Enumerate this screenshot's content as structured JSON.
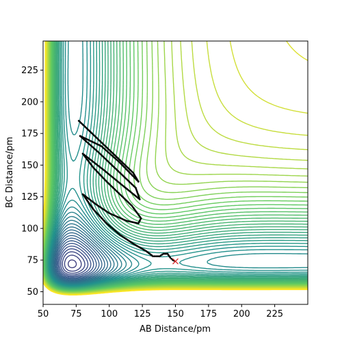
{
  "chart_data": {
    "type": "contour",
    "xlabel": "AB Distance/pm",
    "ylabel": "BC Distance/pm",
    "xlim": [
      50,
      250
    ],
    "ylim": [
      40,
      248
    ],
    "xticks": [
      50,
      75,
      100,
      125,
      150,
      175,
      200,
      225
    ],
    "yticks": [
      50,
      75,
      100,
      125,
      150,
      175,
      200,
      225
    ],
    "colormap": [
      "#440154",
      "#3b528b",
      "#21918c",
      "#5ec962",
      "#fde725"
    ],
    "trajectory_color": "#000000",
    "end_marker_color": "#d62728",
    "trajectory": [
      [
        77,
        185
      ],
      [
        90,
        172
      ],
      [
        104,
        158
      ],
      [
        118,
        144
      ],
      [
        122,
        137
      ],
      [
        108,
        152
      ],
      [
        94,
        165
      ],
      [
        78,
        173
      ],
      [
        92,
        160
      ],
      [
        106,
        146
      ],
      [
        120,
        132
      ],
      [
        123,
        123
      ],
      [
        110,
        134
      ],
      [
        96,
        146
      ],
      [
        80,
        159
      ],
      [
        88,
        148
      ],
      [
        98,
        137
      ],
      [
        108,
        127
      ],
      [
        117,
        118
      ],
      [
        124,
        108
      ],
      [
        122,
        104
      ],
      [
        113,
        106
      ],
      [
        100,
        112
      ],
      [
        90,
        119
      ],
      [
        80,
        127
      ],
      [
        88,
        115
      ],
      [
        98,
        104
      ],
      [
        108,
        95
      ],
      [
        118,
        88
      ],
      [
        128,
        82
      ],
      [
        133,
        78
      ],
      [
        138,
        78
      ],
      [
        141,
        80
      ],
      [
        144,
        80
      ],
      [
        146,
        77
      ],
      [
        148,
        75
      ],
      [
        150,
        74
      ]
    ],
    "end_point": [
      150,
      74
    ]
  }
}
